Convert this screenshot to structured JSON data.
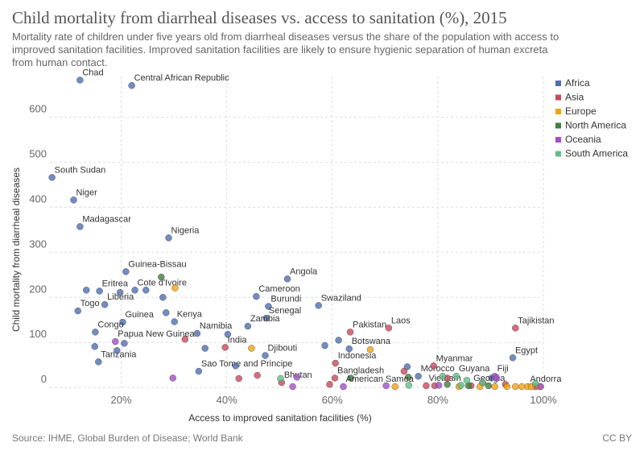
{
  "chart_data": {
    "type": "scatter",
    "title": "Child mortality from diarrheal diseases vs. access to sanitation (%), 2015",
    "subtitle": "Mortality rate of children under five years old from diarrheal diseases versus the share of the population with access to improved sanitation facilities. Improved sanitation facilities are likely to ensure hygienic separation of human excreta from human contact.",
    "x_label": "Access to improved sanitation facilities (%)",
    "y_label": "Child mortality from diarrheal diseases",
    "source": "Source: IHME, Global Burden of Disease; World Bank",
    "license": "CC BY",
    "xlim": [
      6.5,
      100
    ],
    "ylim": [
      -5,
      690
    ],
    "xticks": [
      {
        "value": 20,
        "label": "20%"
      },
      {
        "value": 40,
        "label": "40%"
      },
      {
        "value": 60,
        "label": "60%"
      },
      {
        "value": 80,
        "label": "80%"
      },
      {
        "value": 100,
        "label": "100%"
      }
    ],
    "yticks": [
      0,
      100,
      200,
      300,
      400,
      500,
      600
    ],
    "grid": true,
    "legend": "top-right",
    "series": [
      {
        "name": "Africa",
        "color": "#4f6fb0",
        "x": [
          12.2,
          22.0,
          6.9,
          11.0,
          12.2,
          29.0,
          20.9,
          15.9,
          22.6,
          51.5,
          45.6,
          47.9,
          47.5,
          57.4,
          16.9,
          11.8,
          20.3,
          30.1,
          44.0,
          15.1,
          34.4,
          63.2,
          47.3,
          94.2,
          15.7,
          34.7,
          76.3,
          13.4,
          19.8,
          24.7,
          28.5,
          27.9,
          40.2,
          15.0,
          20.6,
          19.2,
          35.9,
          41.7,
          58.6,
          61.2,
          74.2,
          90.2
        ],
        "values": [
          682,
          670,
          466,
          416,
          357,
          332,
          257,
          214,
          216,
          241,
          202,
          180,
          154,
          182,
          184,
          170,
          145,
          146,
          136,
          123,
          120,
          86,
          71,
          66,
          57,
          36,
          25,
          216,
          211,
          216,
          166,
          200,
          118,
          91,
          98,
          82,
          87,
          48,
          93,
          105,
          46,
          21
        ],
        "labels": [
          "Chad",
          "Central African Republic",
          "South Sudan",
          "Niger",
          "Madagascar",
          "Nigeria",
          "Guinea-Bissau",
          "Eritrea",
          "Cote d'Ivoire",
          "Angola",
          "Cameroon",
          "Burundi",
          "Senegal",
          "Swaziland",
          "Liberia",
          "Togo",
          "Guinea",
          "Kenya",
          "Zambia",
          "Congo",
          "Namibia",
          "Botswana",
          "Djibouti",
          "Egypt",
          "Tanzania",
          "Sao Tome and Principe",
          "Morocco",
          null,
          null,
          null,
          null,
          null,
          null,
          null,
          null,
          null,
          null,
          null,
          null,
          null,
          null,
          null
        ]
      },
      {
        "name": "Asia",
        "color": "#c9485b",
        "x": [
          70.7,
          94.7,
          63.4,
          39.7,
          60.6,
          79.2,
          60.5,
          50.4,
          77.8,
          86.3,
          32.1,
          42.3,
          45.8,
          59.5,
          73.6,
          79.4,
          81.8,
          88.5,
          92.8,
          98.5
        ],
        "values": [
          132,
          132,
          123,
          89,
          54,
          48,
          21,
          11,
          4,
          4,
          107,
          20,
          27,
          7,
          36,
          4,
          21,
          11,
          7,
          2
        ],
        "labels": [
          "Laos",
          "Tajikistan",
          "Pakistan",
          "India",
          "Indonesia",
          "Myanmar",
          "Bangladesh",
          "Bhutan",
          "Vietnam",
          "Georgia",
          null,
          null,
          null,
          null,
          null,
          null,
          null,
          null,
          null,
          null
        ]
      },
      {
        "name": "Europe",
        "color": "#f2a30f",
        "x": [
          97.0,
          30.2,
          44.7,
          67.2,
          71.9,
          84.0,
          88.0,
          90.8,
          93.1,
          94.7,
          95.9,
          97.7,
          99.2
        ],
        "values": [
          2,
          221,
          87,
          84,
          2,
          2,
          2,
          2,
          2,
          2,
          2,
          2,
          2
        ],
        "labels": [
          "Andorra",
          null,
          null,
          null,
          null,
          null,
          null,
          null,
          null,
          null,
          null,
          null,
          null
        ]
      },
      {
        "name": "North America",
        "color": "#3f7f3f",
        "x": [
          27.6,
          63.5,
          74.4,
          81.8,
          85.8,
          89.6
        ],
        "values": [
          245,
          21,
          23,
          7,
          4,
          4
        ],
        "labels": [
          null,
          null,
          null,
          null,
          null,
          null
        ]
      },
      {
        "name": "Oceania",
        "color": "#a34fc8",
        "x": [
          18.9,
          90.8,
          62.1,
          29.8,
          52.5,
          53.3,
          70.2,
          80.2,
          91.1,
          99.5
        ],
        "values": [
          102,
          25,
          2,
          21,
          2,
          23,
          4,
          5,
          21,
          2
        ],
        "labels": [
          "Papua New Guinea",
          "Fiji",
          "American Samoa",
          null,
          null,
          null,
          null,
          null,
          null,
          null
        ]
      },
      {
        "name": "South America",
        "color": "#5fc08a",
        "x": [
          83.5,
          50.2,
          74.5,
          80.9,
          84.4,
          85.5,
          88.5,
          98.5
        ],
        "values": [
          25,
          20,
          5,
          25,
          5,
          16,
          11,
          9
        ],
        "labels": [
          "Guyana",
          null,
          null,
          null,
          null,
          null,
          null,
          null
        ]
      }
    ]
  }
}
